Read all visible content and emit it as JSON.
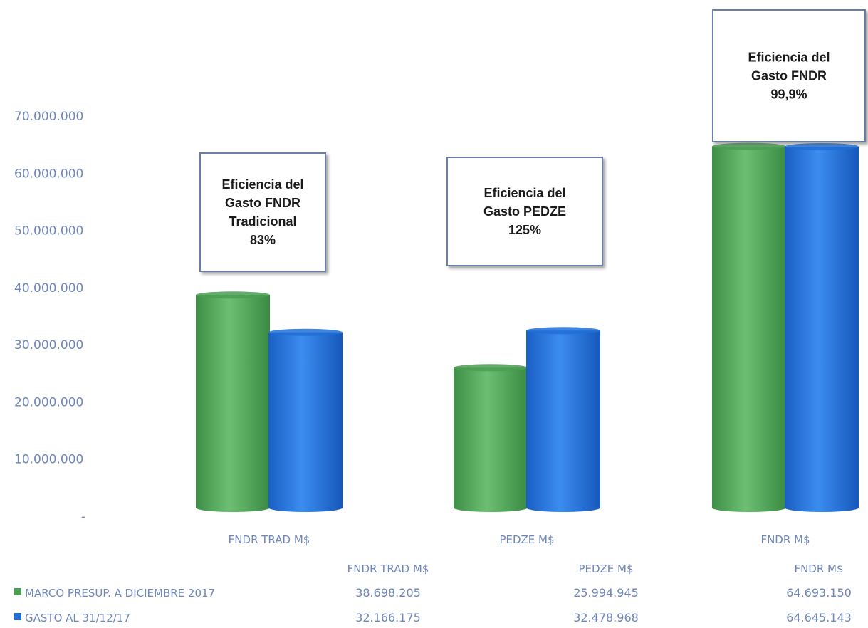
{
  "chart_data": {
    "type": "bar",
    "categories": [
      "FNDR TRAD M$",
      "PEDZE M$",
      "FNDR M$"
    ],
    "series": [
      {
        "name": "MARCO PRESUP. A DICIEMBRE 2017",
        "values": [
          38698205,
          25994945,
          64693150
        ],
        "labels": [
          "38.698.205",
          "25.994.945",
          "64.693.150"
        ],
        "color": "#4a9e52"
      },
      {
        "name": "GASTO AL 31/12/17",
        "values": [
          32166175,
          32478968,
          64645143
        ],
        "labels": [
          "32.166.175",
          "32.478.968",
          "64.645.143"
        ],
        "color": "#1f6fd6"
      }
    ],
    "ylim": [
      0,
      70000000
    ],
    "y_ticks": [
      "-",
      "10.000.000",
      "20.000.000",
      "30.000.000",
      "40.000.000",
      "50.000.000",
      "60.000.000",
      "70.000.000"
    ],
    "grid": false,
    "legend": "bottom-left, as data table",
    "data_table_headers": [
      "FNDR TRAD M$",
      "PEDZE M$",
      "FNDR M$"
    ],
    "annotations": [
      {
        "category": "FNDR TRAD M$",
        "lines": [
          "Eficiencia del",
          "Gasto FNDR",
          "Tradicional",
          "83%"
        ]
      },
      {
        "category": "PEDZE M$",
        "lines": [
          "Eficiencia del",
          "Gasto PEDZE",
          "125%"
        ]
      },
      {
        "category": "FNDR M$",
        "lines": [
          "Eficiencia del",
          "Gasto FNDR",
          "99,9%"
        ]
      }
    ]
  }
}
